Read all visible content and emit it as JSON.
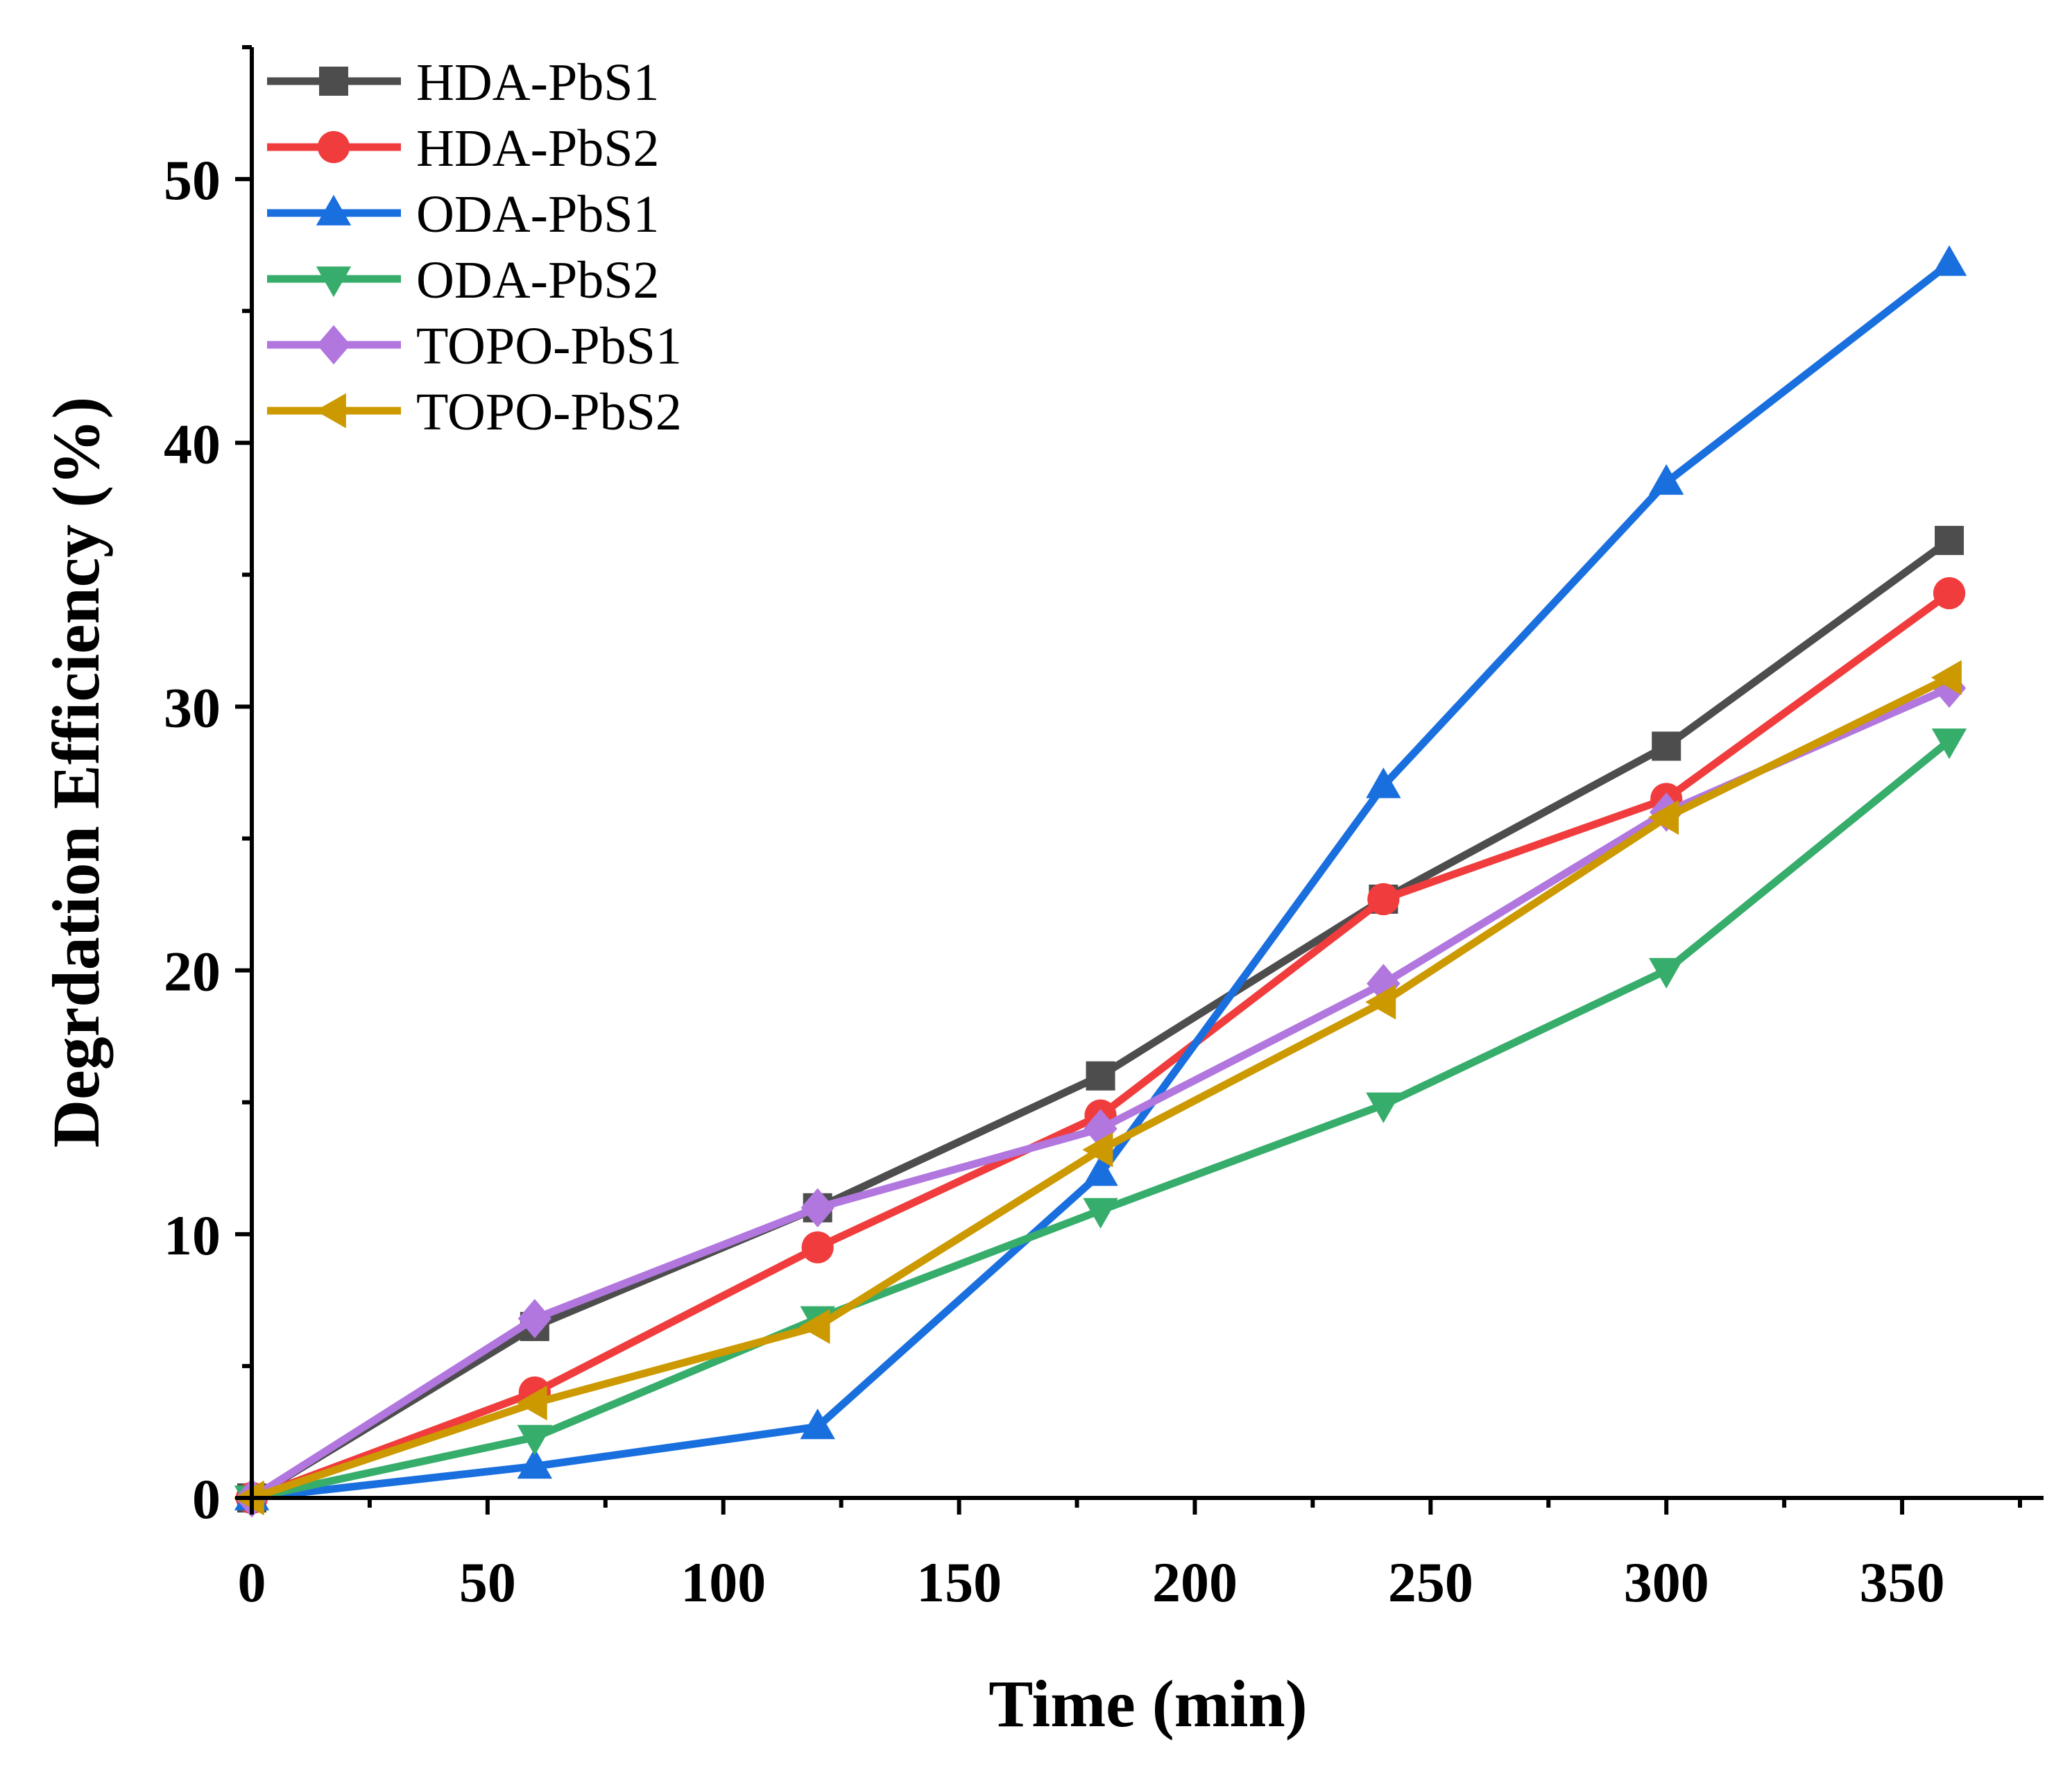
{
  "chart_data": {
    "type": "line",
    "title": "",
    "xlabel": "Time (min)",
    "ylabel": "Degrdation Efficiency (%)",
    "xlim": [
      0,
      380
    ],
    "ylim": [
      0,
      55
    ],
    "xticks": [
      0,
      50,
      100,
      150,
      200,
      250,
      300,
      350
    ],
    "xtick_labels": [
      "0",
      "50",
      "100",
      "150",
      "200",
      "250",
      "300",
      "350"
    ],
    "yticks": [
      0,
      10,
      20,
      30,
      40,
      50
    ],
    "ytick_labels": [
      "0",
      "10",
      "20",
      "30",
      "40",
      "50"
    ],
    "x": [
      0,
      60,
      120,
      180,
      240,
      300,
      360
    ],
    "legend_position": "top-left",
    "series": [
      {
        "name": "HDA-PbS1",
        "color": "#4d4d4d",
        "marker": "square",
        "values": [
          0,
          6.5,
          11.0,
          16.0,
          22.7,
          28.5,
          36.3
        ]
      },
      {
        "name": "HDA-PbS2",
        "color": "#f03c3c",
        "marker": "circle",
        "values": [
          0,
          4.0,
          9.5,
          14.5,
          22.7,
          26.5,
          34.3
        ]
      },
      {
        "name": "ODA-PbS1",
        "color": "#1a6fdf",
        "marker": "triangle-up",
        "values": [
          0,
          1.2,
          2.7,
          12.3,
          27.0,
          38.5,
          46.8
        ]
      },
      {
        "name": "ODA-PbS2",
        "color": "#37ad6b",
        "marker": "triangle-down",
        "values": [
          0,
          2.3,
          6.8,
          10.9,
          14.9,
          20.0,
          28.7
        ]
      },
      {
        "name": "TOPO-PbS1",
        "color": "#b177de",
        "marker": "diamond",
        "values": [
          0,
          6.8,
          11.0,
          14.0,
          19.5,
          26.0,
          30.7
        ]
      },
      {
        "name": "TOPO-PbS2",
        "color": "#cc9900",
        "marker": "triangle-left",
        "values": [
          0,
          3.6,
          6.5,
          13.2,
          18.8,
          25.8,
          31.1
        ]
      }
    ]
  }
}
